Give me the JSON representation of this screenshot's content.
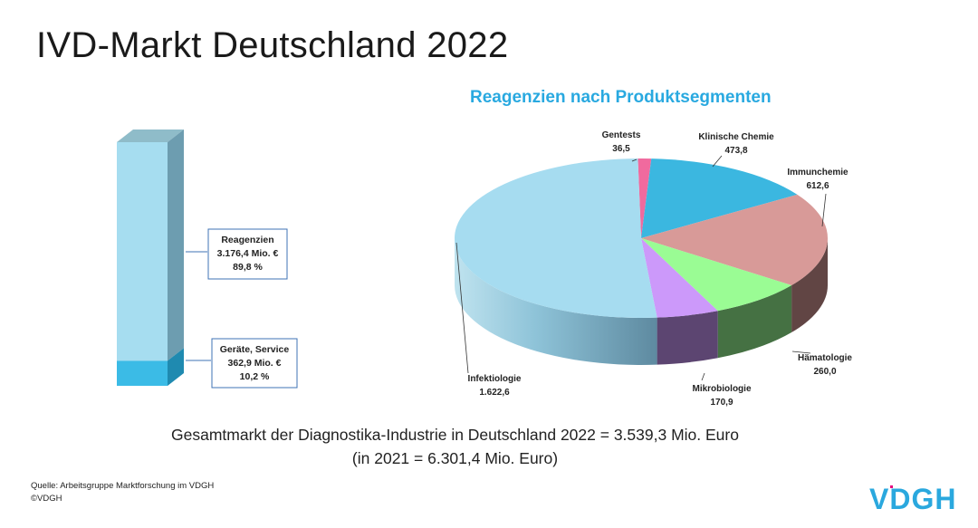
{
  "title": "IVD-Markt Deutschland 2022",
  "pie_title": "Reagenzien nach Produktsegmenten",
  "chart_data": [
    {
      "type": "bar",
      "stacked": true,
      "unit": "Mio. €",
      "segments": [
        {
          "name": "Reagenzien",
          "value": 3176.4,
          "value_label": "3.176,4 Mio. €",
          "percent_label": "89,8 %",
          "color": "#a6ddf0"
        },
        {
          "name": "Geräte, Service",
          "value": 362.9,
          "value_label": "362,9 Mio. €",
          "percent_label": "10,2 %",
          "color": "#3bbbe6"
        }
      ]
    },
    {
      "type": "pie",
      "title": "Reagenzien nach Produktsegmenten",
      "slices": [
        {
          "name": "Gentests",
          "value": 36.5,
          "value_label": "36,5",
          "color": "#f06a9e"
        },
        {
          "name": "Klinische Chemie",
          "value": 473.8,
          "value_label": "473,8",
          "color": "#3bb7e0"
        },
        {
          "name": "Immunchemie",
          "value": 612.6,
          "value_label": "612,6",
          "color": "#d89a98"
        },
        {
          "name": "Hämatologie",
          "value": 260.0,
          "value_label": "260,0",
          "color": "#9afc94"
        },
        {
          "name": "Mikrobiologie",
          "value": 170.9,
          "value_label": "170,9",
          "color": "#cc99fa"
        },
        {
          "name": "Infektiologie",
          "value": 1622.6,
          "value_label": "1.622,6",
          "color": "#a6dcf0"
        }
      ]
    }
  ],
  "total_line_1": "Gesamtmarkt der Diagnostika-Industrie in Deutschland 2022 = 3.539,3 Mio. Euro",
  "total_line_2": "(in 2021 = 6.301,4 Mio. Euro)",
  "source": "Quelle: Arbeitsgruppe Marktforschung im VDGH",
  "copyright": "©VDGH",
  "logo_text": "VDGH",
  "colors": {
    "accent": "#29a9e0",
    "logo_blue": "#2aa8de",
    "logo_pink": "#e6007e",
    "label_border": "#3f73b5"
  }
}
